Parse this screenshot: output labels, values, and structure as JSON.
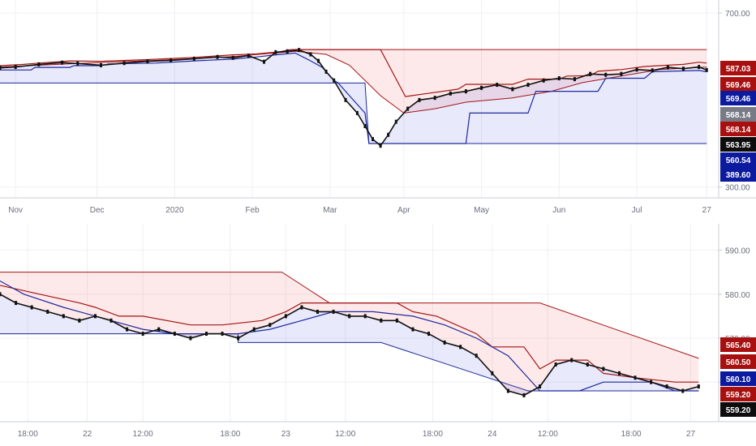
{
  "colors": {
    "background": "#ffffff",
    "grid": "#eef0f4",
    "axis_line": "#c9ccd4",
    "tick_text": "#6b6f7a",
    "red_line": "#a31515",
    "red_fill": "rgba(240,120,120,0.16)",
    "blue_line": "#1e2a9c",
    "blue_fill": "rgba(110,120,230,0.16)",
    "price": "#111111",
    "badge_red": "#a80f0f",
    "badge_blue": "#0b1a9e",
    "badge_grey": "#787b86",
    "badge_black": "#0d0d0d"
  },
  "chart_data": [
    {
      "type": "line",
      "panel": "top",
      "description_scale": "daily",
      "ylim": [
        275,
        730
      ],
      "y_ticks": [
        "700.00",
        "300.00"
      ],
      "x_ticks": [
        "Nov",
        "Dec",
        "2020",
        "Feb",
        "Mar",
        "Apr",
        "May",
        "Jun",
        "Jul",
        "27"
      ],
      "x_tick_pos": [
        0.2,
        1.25,
        2.25,
        3.25,
        4.25,
        5.2,
        6.2,
        7.2,
        8.2,
        9.1
      ],
      "x_range": [
        0,
        9.15
      ],
      "series": [
        {
          "role": "price",
          "x": [
            0,
            0.2,
            0.5,
            0.8,
            1.0,
            1.3,
            1.6,
            1.9,
            2.2,
            2.5,
            2.8,
            3.0,
            3.2,
            3.4,
            3.55,
            3.7,
            3.85,
            4.0,
            4.1,
            4.2,
            4.3,
            4.45,
            4.6,
            4.7,
            4.8,
            4.9,
            5.0,
            5.1,
            5.25,
            5.4,
            5.6,
            5.8,
            6.0,
            6.2,
            6.4,
            6.6,
            6.8,
            7.0,
            7.2,
            7.4,
            7.6,
            7.8,
            8.0,
            8.2,
            8.4,
            8.6,
            8.8,
            9.0,
            9.1
          ],
          "values": [
            574,
            576,
            582,
            586,
            584,
            580,
            585,
            589,
            591,
            595,
            599,
            597,
            602,
            588,
            610,
            612,
            615,
            605,
            590,
            565,
            545,
            500,
            470,
            440,
            410,
            395,
            420,
            450,
            480,
            500,
            505,
            515,
            520,
            528,
            535,
            525,
            535,
            545,
            550,
            548,
            560,
            558,
            560,
            570,
            568,
            575,
            572,
            576,
            569
          ]
        },
        {
          "role": "upper",
          "x": [
            0,
            0.3,
            0.5,
            0.9,
            1.3,
            1.9,
            2.5,
            3.0,
            3.3,
            3.6,
            3.75,
            4.9,
            5.22,
            5.3,
            5.5,
            5.9,
            6.0,
            6.6,
            6.8,
            7.2,
            7.3,
            7.6,
            7.7,
            8.0,
            8.3,
            8.6,
            8.8,
            9.0,
            9.1
          ],
          "values": [
            579,
            582,
            585,
            590,
            589,
            593,
            598,
            604,
            606,
            611,
            616,
            616,
            508,
            510,
            515,
            525,
            536,
            536,
            548,
            548,
            555,
            556,
            566,
            570,
            577,
            580,
            582,
            587,
            585
          ]
        },
        {
          "role": "lower",
          "x": [
            0,
            0.4,
            0.45,
            0.9,
            0.95,
            1.3,
            1.4,
            2.0,
            2.5,
            3.0,
            3.3,
            3.5,
            3.8,
            4.0,
            4.15,
            4.3,
            4.35,
            4.5,
            4.7,
            4.75,
            5.2,
            5.25,
            6.0,
            6.05,
            6.8,
            6.9,
            7.7,
            7.8,
            8.3,
            8.4,
            9.0,
            9.1
          ],
          "values": [
            569,
            569,
            575,
            575,
            579,
            579,
            583,
            585,
            590,
            594,
            599,
            603,
            608,
            590,
            575,
            545,
            540,
            510,
            470,
            400,
            400,
            400,
            400,
            470,
            470,
            520,
            520,
            550,
            550,
            565,
            568,
            565
          ]
        },
        {
          "role": "mid",
          "x": [
            0,
            1.0,
            2.0,
            3.0,
            3.8,
            4.2,
            4.5,
            4.9,
            5.2,
            5.6,
            6.0,
            6.6,
            7.1,
            7.5,
            8.0,
            8.5,
            9.1
          ],
          "values": [
            576,
            584,
            591,
            600,
            612,
            605,
            580,
            510,
            470,
            480,
            495,
            505,
            520,
            540,
            555,
            570,
            576
          ]
        },
        {
          "role": "band_upper_step",
          "x": [
            3.75,
            5.0,
            5.0,
            9.1
          ],
          "values": [
            616,
            616,
            616,
            616
          ]
        },
        {
          "role": "band_lower_step",
          "x": [
            0,
            3.9,
            4.0,
            4.7,
            4.75,
            9.1
          ],
          "values": [
            539,
            539,
            539,
            539,
            400,
            400
          ]
        }
      ],
      "badges": [
        "587.03",
        "569.46",
        "569.46",
        "568.14",
        "568.14",
        "563.95",
        "560.54",
        "389.60"
      ]
    },
    {
      "type": "line",
      "panel": "bottom",
      "description_scale": "intraday",
      "ylim": [
        551,
        596
      ],
      "y_ticks": [
        "590.00",
        "580.00",
        "570.00",
        "560.00"
      ],
      "x_ticks": [
        "18:00",
        "22",
        "12:00",
        "18:00",
        "23",
        "12:00",
        "18:00",
        "24",
        "12:00",
        "18:00",
        "27"
      ],
      "x_tick_pos": [
        0.35,
        1.1,
        1.8,
        2.9,
        3.6,
        4.35,
        5.45,
        6.2,
        6.9,
        7.95,
        8.7
      ],
      "x_range": [
        0,
        8.95
      ],
      "series": [
        {
          "role": "price",
          "x": [
            0,
            0.2,
            0.4,
            0.6,
            0.8,
            1.0,
            1.2,
            1.4,
            1.6,
            1.8,
            2.0,
            2.2,
            2.4,
            2.6,
            2.8,
            3.0,
            3.2,
            3.4,
            3.6,
            3.8,
            4.0,
            4.2,
            4.4,
            4.6,
            4.8,
            5.0,
            5.2,
            5.4,
            5.6,
            5.8,
            6.0,
            6.2,
            6.4,
            6.6,
            6.8,
            7.0,
            7.2,
            7.4,
            7.6,
            7.8,
            8.0,
            8.2,
            8.4,
            8.6,
            8.8
          ],
          "values": [
            580,
            578,
            577,
            576,
            575,
            574,
            575,
            574,
            572,
            571,
            572,
            571,
            570,
            571,
            571,
            570,
            572,
            573,
            575,
            577,
            576,
            576,
            575,
            575,
            574,
            574,
            572,
            571,
            569,
            568,
            566,
            562,
            558,
            557,
            559,
            564,
            565,
            564,
            563,
            562,
            561,
            560,
            559,
            558,
            559
          ]
        },
        {
          "role": "upper",
          "x": [
            0,
            0.5,
            1.0,
            1.2,
            1.5,
            1.8,
            2.4,
            2.8,
            3.3,
            3.6,
            3.8,
            4.0,
            4.1,
            5.0,
            5.2,
            5.5,
            6.0,
            6.2,
            6.6,
            6.8,
            7.0,
            7.4,
            7.6,
            8.0,
            8.5,
            8.8
          ],
          "values": [
            582,
            580,
            578,
            577,
            575,
            575,
            573,
            573,
            574,
            576,
            578,
            578,
            578,
            578,
            576,
            575,
            571,
            568,
            568,
            563,
            565,
            565,
            562,
            561,
            560,
            560
          ]
        },
        {
          "role": "lower",
          "x": [
            0,
            0.3,
            0.8,
            1.0,
            1.4,
            1.8,
            2.2,
            2.6,
            3.0,
            3.4,
            3.8,
            4.2,
            4.7,
            5.2,
            5.6,
            6.0,
            6.4,
            6.6,
            6.8,
            7.0,
            7.3,
            7.6,
            7.9,
            8.2,
            8.5,
            8.8
          ],
          "values": [
            583,
            580,
            577,
            576,
            574,
            572,
            571,
            571,
            571,
            572,
            574,
            576,
            576,
            575,
            573,
            570,
            566,
            562,
            558,
            558,
            558,
            560,
            560,
            560,
            558,
            558
          ]
        },
        {
          "role": "band_upper_step",
          "x": [
            0,
            1.1,
            1.1,
            3.55,
            3.55,
            4.15,
            4.15,
            6.8,
            6.8,
            8.8
          ],
          "values": [
            585,
            585,
            585,
            585,
            585,
            578,
            578,
            578,
            578,
            565.4
          ]
        },
        {
          "role": "band_lower_step",
          "x": [
            0,
            3.0,
            3.0,
            4.8,
            4.8,
            6.65,
            6.65,
            8.8
          ],
          "values": [
            571,
            571,
            569,
            569,
            569,
            558,
            558,
            558
          ]
        }
      ],
      "badges": [
        "565.40",
        "560.50",
        "560.10",
        "559.20",
        "559.20"
      ]
    }
  ]
}
